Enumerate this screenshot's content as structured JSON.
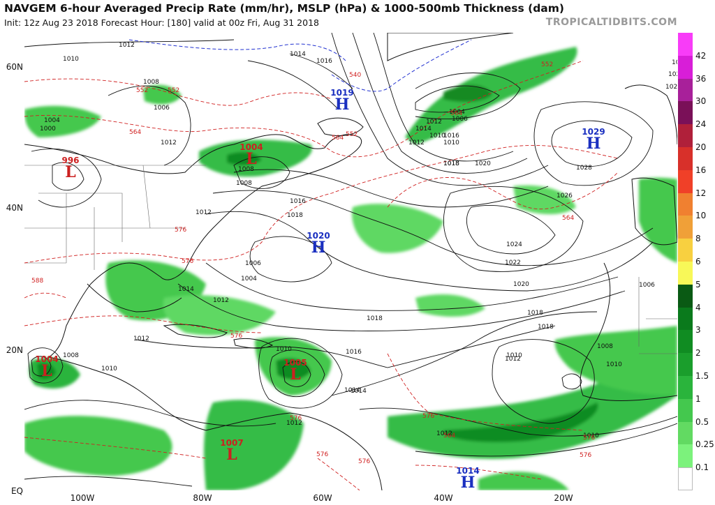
{
  "title": "NAVGEM 6-hour Averaged Precip Rate (mm/hr), MSLP (hPa) & 1000-500mb Thickness (dam)",
  "subtitle": "Init: 12z Aug 23 2018   Forecast Hour: [180]   valid at 00z Fri, Aug 31 2018",
  "source": "TROPICALTIDBITS.COM",
  "lat_labels": [
    "60N",
    "40N",
    "20N",
    "EQ"
  ],
  "lon_labels": [
    "100W",
    "80W",
    "60W",
    "40W",
    "20W"
  ],
  "colorbar": {
    "labels": [
      "42",
      "36",
      "30",
      "24",
      "20",
      "16",
      "12",
      "10",
      "8",
      "6",
      "5",
      "4",
      "3",
      "2",
      "1.5",
      "1",
      "0.5",
      "0.25",
      "0.1"
    ],
    "colors": [
      "#f83cf8",
      "#d81ed8",
      "#a8209a",
      "#7a1058",
      "#b0203a",
      "#d8302a",
      "#f04028",
      "#f08030",
      "#f0a038",
      "#f8d040",
      "#f8f858",
      "#0a5a14",
      "#0a7a1c",
      "#108c22",
      "#1a9e2c",
      "#2ab43c",
      "#44c84e",
      "#62da62",
      "#7cf27c",
      "#ffffff"
    ]
  },
  "pressure_centers": [
    {
      "type": "L",
      "value": "996"
    },
    {
      "type": "L",
      "value": "1004"
    },
    {
      "type": "H",
      "value": "1019"
    },
    {
      "type": "H",
      "value": "1029"
    },
    {
      "type": "H",
      "value": "1020"
    },
    {
      "type": "L",
      "value": "1004"
    },
    {
      "type": "L",
      "value": "1005"
    },
    {
      "type": "L",
      "value": "1007"
    },
    {
      "type": "H",
      "value": "1014"
    }
  ],
  "isobar_labels": [
    "1012",
    "1010",
    "1014",
    "1016",
    "1008",
    "1004",
    "1000",
    "1012",
    "1006",
    "1008",
    "1008",
    "1016",
    "1018",
    "1012",
    "1004",
    "1006",
    "1012",
    "1014",
    "1008",
    "1010",
    "1012",
    "1010",
    "1016",
    "1014",
    "1018",
    "1018",
    "1016",
    "1014",
    "1012",
    "1010",
    "1018",
    "1020",
    "1022",
    "1024",
    "1026",
    "1028",
    "1022",
    "1024",
    "1026",
    "1006",
    "1004",
    "1006",
    "1010",
    "1012",
    "1008",
    "1010",
    "1012",
    "1010",
    "1012",
    "1014",
    "1012",
    "1010",
    "1018",
    "1020",
    "1018"
  ],
  "thickness_labels": [
    "552",
    "552",
    "564",
    "552",
    "564",
    "540",
    "564",
    "552",
    "564",
    "576",
    "576",
    "576",
    "588",
    "576",
    "576",
    "576",
    "576",
    "576",
    "576",
    "564"
  ]
}
